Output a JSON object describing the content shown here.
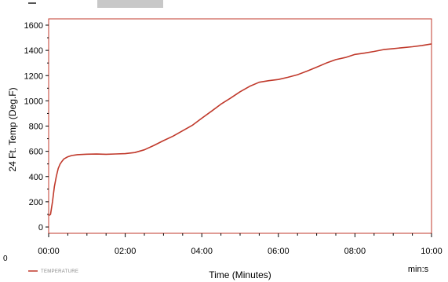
{
  "chart_data": {
    "type": "line",
    "xlabel": "Time (Minutes)",
    "ylabel": "24 Ft. Temp (Deg.F)",
    "x_unit_label": "min:s",
    "xlim": [
      0,
      10
    ],
    "ylim": [
      0,
      1650
    ],
    "x_tick_labels": [
      "00:00",
      "02:00",
      "04:00",
      "06:00",
      "08:00",
      "10:00"
    ],
    "x_tick_values": [
      0,
      2,
      4,
      6,
      8,
      10
    ],
    "y_ticks": [
      0,
      200,
      400,
      600,
      800,
      1000,
      1200,
      1400,
      1600
    ],
    "grid": false,
    "legend_position": "bottom-left",
    "series": [
      {
        "name": "TEMPERATURE",
        "color": "#c0392b",
        "x": [
          0,
          0.05,
          0.1,
          0.15,
          0.2,
          0.25,
          0.3,
          0.35,
          0.4,
          0.5,
          0.6,
          0.75,
          1.0,
          1.25,
          1.5,
          1.75,
          2.0,
          2.25,
          2.5,
          2.75,
          3.0,
          3.25,
          3.5,
          3.75,
          4.0,
          4.25,
          4.5,
          4.75,
          5.0,
          5.25,
          5.5,
          5.75,
          6.0,
          6.25,
          6.5,
          6.75,
          7.0,
          7.25,
          7.5,
          7.75,
          8.0,
          8.25,
          8.5,
          8.75,
          9.0,
          9.25,
          9.5,
          9.75,
          10.0
        ],
        "y": [
          90,
          100,
          200,
          320,
          420,
          480,
          510,
          525,
          535,
          545,
          550,
          555,
          560,
          565,
          570,
          580,
          590,
          605,
          630,
          665,
          700,
          730,
          765,
          800,
          850,
          900,
          955,
          1005,
          1060,
          1110,
          1150,
          1170,
          1185,
          1205,
          1225,
          1250,
          1275,
          1300,
          1320,
          1330,
          1350,
          1360,
          1375,
          1395,
          1410,
          1425,
          1440,
          1455,
          1470
        ]
      }
    ]
  },
  "page": {
    "stray_zero_label": "0"
  }
}
